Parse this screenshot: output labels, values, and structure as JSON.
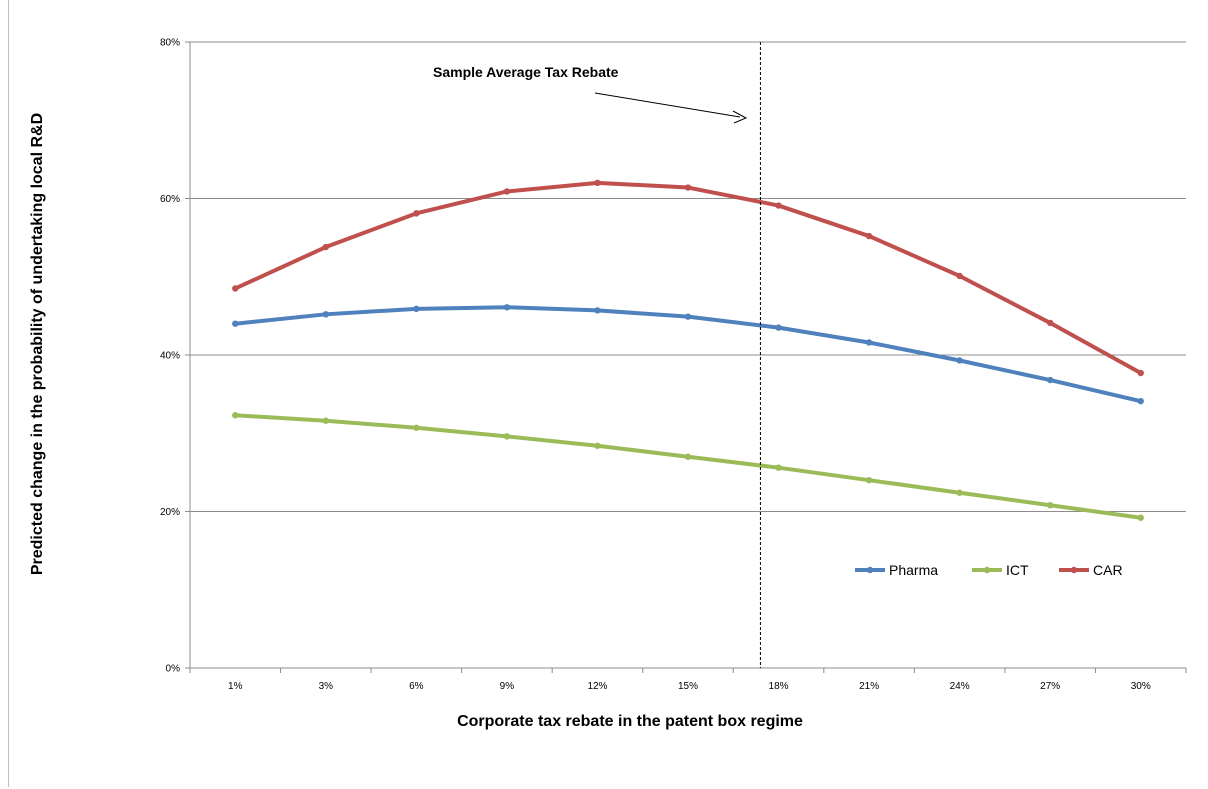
{
  "chart_data": {
    "type": "line",
    "title": "",
    "xlabel": "Corporate tax rebate in the patent box regime",
    "ylabel": "Predicted change in the probability of undertaking local R&D",
    "categories": [
      "1%",
      "3%",
      "6%",
      "9%",
      "12%",
      "15%",
      "18%",
      "21%",
      "24%",
      "27%",
      "30%"
    ],
    "y_ticks": [
      "0%",
      "20%",
      "40%",
      "60%",
      "80%"
    ],
    "ylim": [
      0,
      80
    ],
    "grid": "horizontal",
    "legend_position": "lower-right",
    "series": [
      {
        "name": "Pharma",
        "color": "#4f81bd",
        "values": [
          44.0,
          45.2,
          45.9,
          46.1,
          45.7,
          44.9,
          43.5,
          41.6,
          39.3,
          36.8,
          34.1
        ]
      },
      {
        "name": "ICT",
        "color": "#9bbb59",
        "values": [
          32.3,
          31.6,
          30.7,
          29.6,
          28.4,
          27.0,
          25.6,
          24.0,
          22.4,
          20.8,
          19.2
        ]
      },
      {
        "name": "CAR",
        "color": "#c0504d",
        "values": [
          48.5,
          53.8,
          58.1,
          60.9,
          62.0,
          61.4,
          59.1,
          55.2,
          50.1,
          44.1,
          37.7
        ]
      }
    ],
    "annotation": {
      "text": "Sample Average Tax Rebate",
      "reference_x": 17.4
    }
  }
}
